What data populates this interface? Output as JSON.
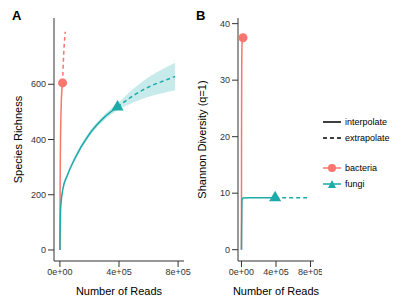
{
  "chart_data": [
    {
      "type": "line",
      "title": "A",
      "x_label": "Number of Reads",
      "y_label": "Species Richness",
      "grid": false,
      "xlim": [
        -40000,
        840000
      ],
      "xticks": [
        {
          "value": 0,
          "label": "0e+00"
        },
        {
          "value": 400000,
          "label": "4e+05"
        },
        {
          "value": 800000,
          "label": "8e+05"
        }
      ],
      "ylim": [
        -40,
        840
      ],
      "yticks": [
        0,
        200,
        400,
        600
      ],
      "series": [
        {
          "name": "bacteria",
          "color": "#F8766D",
          "marker": "circle",
          "segments": [
            {
              "name": "interpolate",
              "line_style": "solid",
              "x": [
                0,
                1000,
                2000,
                4000,
                7000,
                10000,
                14000,
                18000
              ],
              "values": [
                0,
                180,
                280,
                400,
                490,
                545,
                585,
                605
              ]
            },
            {
              "name": "extrapolate",
              "line_style": "dashed",
              "x": [
                18000,
                24000,
                30000,
                36000
              ],
              "values": [
                605,
                690,
                750,
                790
              ]
            }
          ]
        },
        {
          "name": "fungi",
          "color": "#1FAAAA",
          "marker": "triangle",
          "segments": [
            {
              "name": "interpolate",
              "line_style": "solid",
              "x": [
                0,
                5000,
                20000,
                50000,
                100000,
                200000,
                300000,
                390000
              ],
              "values": [
                0,
                150,
                220,
                270,
                330,
                420,
                480,
                518
              ],
              "lower": [
                0,
                145,
                214,
                263,
                322,
                411,
                470,
                506
              ],
              "upper": [
                0,
                155,
                226,
                277,
                338,
                429,
                490,
                530
              ]
            },
            {
              "name": "extrapolate",
              "line_style": "dashed",
              "x": [
                390000,
                500000,
                600000,
                700000,
                780000
              ],
              "values": [
                518,
                560,
                590,
                612,
                628
              ],
              "lower": [
                506,
                535,
                555,
                568,
                578
              ],
              "upper": [
                530,
                585,
                625,
                656,
                678
              ]
            }
          ]
        }
      ]
    },
    {
      "type": "line",
      "title": "B",
      "x_label": "Number of Reads",
      "y_label": "Shannon Diversity (q=1)",
      "grid": false,
      "legend": "right",
      "xlim": [
        -40000,
        840000
      ],
      "xticks": [
        {
          "value": 0,
          "label": "0e+00"
        },
        {
          "value": 400000,
          "label": "4e+05"
        },
        {
          "value": 800000,
          "label": "8e+05"
        }
      ],
      "ylim": [
        -2,
        41
      ],
      "yticks": [
        0,
        10,
        20,
        30,
        40
      ],
      "series": [
        {
          "name": "bacteria",
          "color": "#F8766D",
          "marker": "circle",
          "segments": [
            {
              "name": "interpolate",
              "line_style": "solid",
              "x": [
                0,
                1000,
                3000,
                6000,
                10000,
                18000
              ],
              "values": [
                0,
                20,
                32,
                36,
                37,
                37.5
              ]
            },
            {
              "name": "extrapolate",
              "line_style": "dashed",
              "x": [
                18000,
                27000,
                36000
              ],
              "values": [
                37.5,
                37.9,
                38.2
              ]
            }
          ]
        },
        {
          "name": "fungi",
          "color": "#1FAAAA",
          "marker": "triangle",
          "segments": [
            {
              "name": "interpolate",
              "line_style": "solid",
              "x": [
                0,
                5000,
                10000,
                20000,
                100000,
                200000,
                300000,
                390000
              ],
              "values": [
                0,
                8.5,
                9,
                9.15,
                9.2,
                9.2,
                9.2,
                9.2
              ]
            },
            {
              "name": "extrapolate",
              "line_style": "dashed",
              "x": [
                390000,
                600000,
                780000
              ],
              "values": [
                9.2,
                9.2,
                9.2
              ]
            }
          ]
        }
      ]
    }
  ]
}
